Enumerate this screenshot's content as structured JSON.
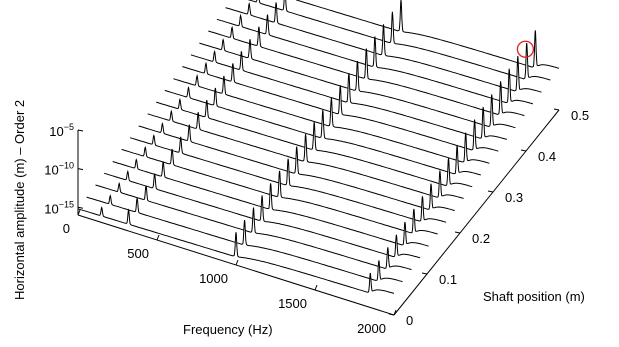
{
  "chart_data": {
    "type": "waterfall",
    "zlabel": "Horizontal amplitude (m) – Order 2",
    "xlabel": "Frequency (Hz)",
    "ylabel": "Shaft position (m)",
    "x_ticks": [
      "0",
      "500",
      "1000",
      "1500",
      "2000"
    ],
    "y_ticks": [
      "0",
      "0.1",
      "0.2",
      "0.3",
      "0.4",
      "0.5"
    ],
    "z_ticks": [
      {
        "base": "10",
        "exp": "−15"
      },
      {
        "base": "10",
        "exp": "−10"
      },
      {
        "base": "10",
        "exp": "−5"
      }
    ],
    "xlim": [
      0,
      2000
    ],
    "ylim": [
      0,
      0.5
    ],
    "z_scale": "log",
    "series_count": 20,
    "shaft_positions": [
      0.0,
      0.026,
      0.053,
      0.079,
      0.105,
      0.132,
      0.158,
      0.184,
      0.211,
      0.237,
      0.263,
      0.289,
      0.316,
      0.342,
      0.368,
      0.395,
      0.421,
      0.447,
      0.474,
      0.5
    ],
    "resonance_peaks_hz": [
      150,
      320,
      1000,
      1850
    ],
    "highlight": {
      "marker": "circle",
      "color": "#e0201b",
      "frequency_hz": 1850,
      "shaft_position_m": 0.47
    }
  }
}
